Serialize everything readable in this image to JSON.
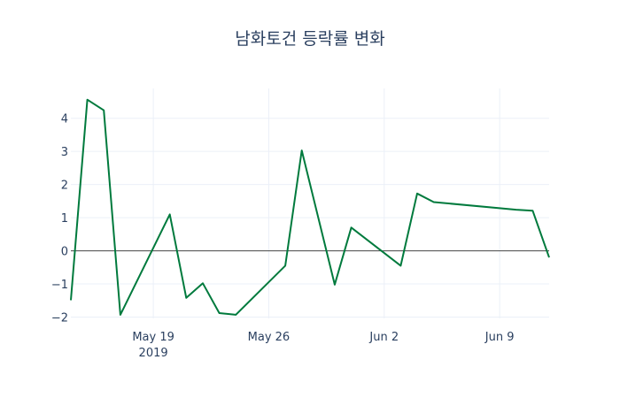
{
  "chart_data": {
    "type": "line",
    "title": "남화토건 등락률 변화",
    "xlabel": "",
    "ylabel": "",
    "x": [
      "2019-05-14",
      "2019-05-15",
      "2019-05-16",
      "2019-05-17",
      "2019-05-20",
      "2019-05-21",
      "2019-05-22",
      "2019-05-23",
      "2019-05-24",
      "2019-05-27",
      "2019-05-28",
      "2019-05-30",
      "2019-05-31",
      "2019-06-03",
      "2019-06-04",
      "2019-06-05",
      "2019-06-10",
      "2019-06-11",
      "2019-06-12"
    ],
    "series": [
      {
        "name": "등락률",
        "color": "#007a3d",
        "values": [
          -1.49,
          4.56,
          4.24,
          -1.93,
          1.1,
          -1.42,
          -0.98,
          -1.88,
          -1.93,
          -0.45,
          3.03,
          -1.02,
          0.7,
          -0.45,
          1.73,
          1.47,
          1.24,
          1.21,
          -0.2
        ]
      }
    ],
    "xlim": [
      "2019-05-14",
      "2019-06-12"
    ],
    "ylim": [
      -2.04,
      4.9
    ],
    "x_ticks": [
      {
        "date": "2019-05-19",
        "label": "May 19",
        "sublabel": "2019"
      },
      {
        "date": "2019-05-26",
        "label": "May 26"
      },
      {
        "date": "2019-06-02",
        "label": "Jun 2"
      },
      {
        "date": "2019-06-09",
        "label": "Jun 9"
      }
    ],
    "y_ticks": [
      {
        "value": -2,
        "label": "−2"
      },
      {
        "value": -1,
        "label": "−1"
      },
      {
        "value": 0,
        "label": "0"
      },
      {
        "value": 1,
        "label": "1"
      },
      {
        "value": 2,
        "label": "2"
      },
      {
        "value": 3,
        "label": "3"
      },
      {
        "value": 4,
        "label": "4"
      }
    ],
    "grid": true,
    "zero_line": true
  }
}
